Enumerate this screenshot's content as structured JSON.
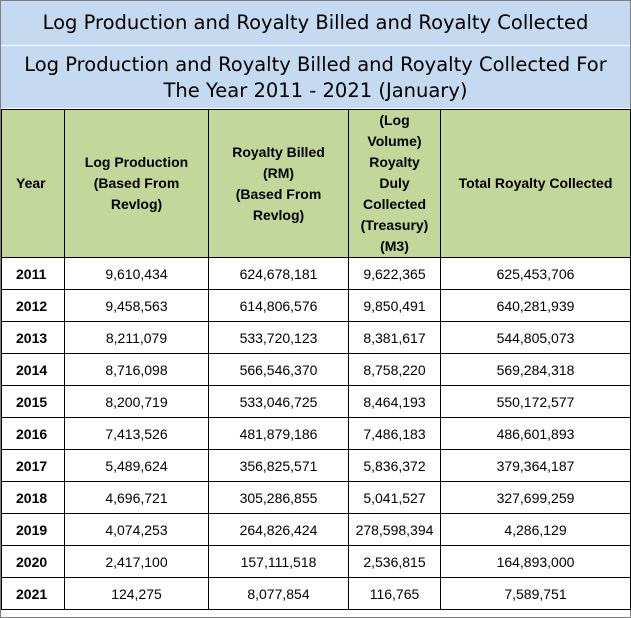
{
  "title_main": "Log Production and Royalty Billed and Royalty Collected",
  "title_sub_line1": "Log Production and Royalty Billed and Royalty Collected For",
  "title_sub_line2": "The Year 2011 - 2021 (January)",
  "columns": {
    "year": "Year",
    "log_production": [
      "Log Production",
      "(Based From",
      "Revlog)"
    ],
    "royalty_billed": [
      "Royalty Billed",
      "(RM)",
      "(Based From",
      "Revlog)"
    ],
    "royalty_duly": [
      "(Log",
      "Volume)",
      "Royalty",
      "Duly",
      "Collected",
      "(Treasury)",
      "(M3)"
    ],
    "total_royalty": "Total Royalty Collected"
  },
  "rows": [
    {
      "year": "2011",
      "log_production": "9,610,434",
      "royalty_billed": "624,678,181",
      "royalty_duly": "9,622,365",
      "total_royalty": "625,453,706"
    },
    {
      "year": "2012",
      "log_production": "9,458,563",
      "royalty_billed": "614,806,576",
      "royalty_duly": "9,850,491",
      "total_royalty": "640,281,939"
    },
    {
      "year": "2013",
      "log_production": "8,211,079",
      "royalty_billed": "533,720,123",
      "royalty_duly": "8,381,617",
      "total_royalty": "544,805,073"
    },
    {
      "year": "2014",
      "log_production": "8,716,098",
      "royalty_billed": "566,546,370",
      "royalty_duly": "8,758,220",
      "total_royalty": "569,284,318"
    },
    {
      "year": "2015",
      "log_production": "8,200,719",
      "royalty_billed": "533,046,725",
      "royalty_duly": "8,464,193",
      "total_royalty": "550,172,577"
    },
    {
      "year": "2016",
      "log_production": "7,413,526",
      "royalty_billed": "481,879,186",
      "royalty_duly": "7,486,183",
      "total_royalty": "486,601,893"
    },
    {
      "year": "2017",
      "log_production": "5,489,624",
      "royalty_billed": "356,825,571",
      "royalty_duly": "5,836,372",
      "total_royalty": "379,364,187"
    },
    {
      "year": "2018",
      "log_production": "4,696,721",
      "royalty_billed": "305,286,855",
      "royalty_duly": "5,041,527",
      "total_royalty": "327,699,259"
    },
    {
      "year": "2019",
      "log_production": "4,074,253",
      "royalty_billed": "264,826,424",
      "royalty_duly": "278,598,394",
      "total_royalty": "4,286,129"
    },
    {
      "year": "2020",
      "log_production": "2,417,100",
      "royalty_billed": "157,111,518",
      "royalty_duly": "2,536,815",
      "total_royalty": "164,893,000"
    },
    {
      "year": "2021",
      "log_production": "124,275",
      "royalty_billed": "8,077,854",
      "royalty_duly": "116,765",
      "total_royalty": "7,589,751"
    }
  ],
  "colors": {
    "banner_bg": "#c5d9f1",
    "header_bg": "#c4d79b",
    "border": "#000000"
  }
}
